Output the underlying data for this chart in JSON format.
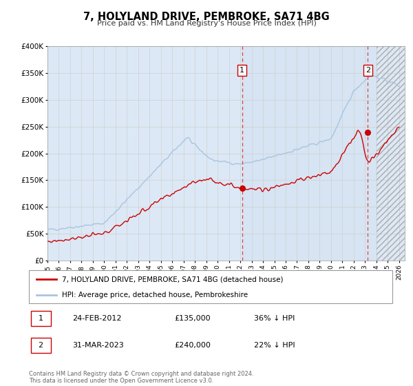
{
  "title": "7, HOLYLAND DRIVE, PEMBROKE, SA71 4BG",
  "subtitle": "Price paid vs. HM Land Registry's House Price Index (HPI)",
  "xlim": [
    1995.0,
    2026.5
  ],
  "ylim": [
    0,
    400000
  ],
  "yticks": [
    0,
    50000,
    100000,
    150000,
    200000,
    250000,
    300000,
    350000,
    400000
  ],
  "ytick_labels": [
    "£0",
    "£50K",
    "£100K",
    "£150K",
    "£200K",
    "£250K",
    "£300K",
    "£350K",
    "£400K"
  ],
  "xticks": [
    1995,
    1996,
    1997,
    1998,
    1999,
    2000,
    2001,
    2002,
    2003,
    2004,
    2005,
    2006,
    2007,
    2008,
    2009,
    2010,
    2011,
    2012,
    2013,
    2014,
    2015,
    2016,
    2017,
    2018,
    2019,
    2020,
    2021,
    2022,
    2023,
    2024,
    2025,
    2026
  ],
  "hpi_color": "#a8c4e0",
  "price_color": "#cc0000",
  "grid_color": "#d0d0d0",
  "bg_color": "#dce8f5",
  "sale1_x": 2012.15,
  "sale1_y": 135000,
  "sale2_x": 2023.25,
  "sale2_y": 240000,
  "legend1_label": "7, HOLYLAND DRIVE, PEMBROKE, SA71 4BG (detached house)",
  "legend2_label": "HPI: Average price, detached house, Pembrokeshire",
  "note1_date": "24-FEB-2012",
  "note1_price": "£135,000",
  "note1_hpi": "36% ↓ HPI",
  "note2_date": "31-MAR-2023",
  "note2_price": "£240,000",
  "note2_hpi": "22% ↓ HPI",
  "footer": "Contains HM Land Registry data © Crown copyright and database right 2024.\nThis data is licensed under the Open Government Licence v3.0."
}
